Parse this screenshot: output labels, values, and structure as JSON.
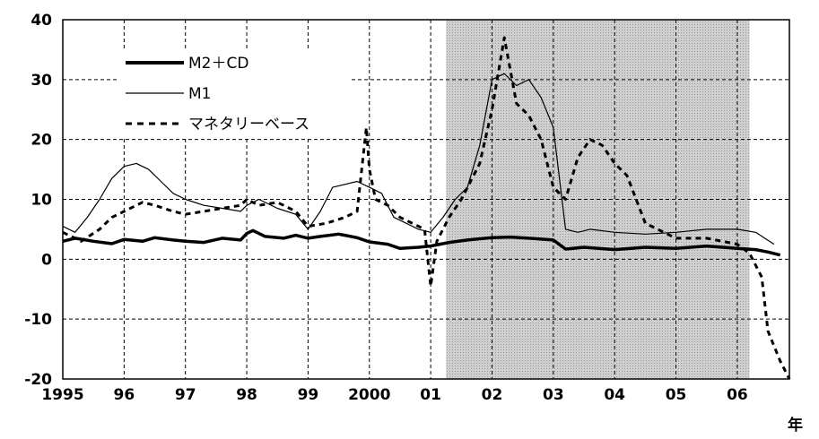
{
  "chart_data": {
    "type": "line",
    "title": "",
    "xlabel": "年",
    "ylabel": "",
    "ylim": [
      -20,
      40
    ],
    "yticks": [
      40,
      30,
      20,
      10,
      0,
      -10,
      -20
    ],
    "xlim": [
      1995.0,
      2006.85
    ],
    "xticks": [
      {
        "x": 1995,
        "label": "1995"
      },
      {
        "x": 1996,
        "label": "96"
      },
      {
        "x": 1997,
        "label": "97"
      },
      {
        "x": 1998,
        "label": "98"
      },
      {
        "x": 1999,
        "label": "99"
      },
      {
        "x": 2000,
        "label": "2000"
      },
      {
        "x": 2001,
        "label": "01"
      },
      {
        "x": 2002,
        "label": "02"
      },
      {
        "x": 2003,
        "label": "03"
      },
      {
        "x": 2004,
        "label": "04"
      },
      {
        "x": 2005,
        "label": "05"
      },
      {
        "x": 2006,
        "label": "06"
      }
    ],
    "grid": true,
    "legend_position": "top-left",
    "shaded_region": {
      "x_start": 2001.25,
      "x_end": 2006.2,
      "color": "#c8c8c8"
    },
    "series": [
      {
        "name": "M2＋CD",
        "style": "thick-solid",
        "color": "#000000",
        "x": [
          1995.0,
          1995.2,
          1995.5,
          1995.8,
          1996.0,
          1996.3,
          1996.5,
          1996.8,
          1997.0,
          1997.3,
          1997.6,
          1997.9,
          1998.0,
          1998.1,
          1998.3,
          1998.6,
          1998.8,
          1999.0,
          1999.2,
          1999.5,
          1999.8,
          2000.0,
          2000.3,
          2000.5,
          2000.8,
          2001.0,
          2001.3,
          2001.6,
          2002.0,
          2002.3,
          2002.6,
          2003.0,
          2003.2,
          2003.5,
          2004.0,
          2004.5,
          2005.0,
          2005.5,
          2006.0,
          2006.3,
          2006.5,
          2006.7
        ],
        "y": [
          3.0,
          3.5,
          3.0,
          2.6,
          3.3,
          3.0,
          3.6,
          3.2,
          3.0,
          2.8,
          3.5,
          3.2,
          4.3,
          4.8,
          3.8,
          3.5,
          4.0,
          3.5,
          3.8,
          4.2,
          3.6,
          2.9,
          2.5,
          1.8,
          2.0,
          2.2,
          2.8,
          3.2,
          3.6,
          3.7,
          3.5,
          3.2,
          1.7,
          2.0,
          1.6,
          2.0,
          1.8,
          2.2,
          1.8,
          1.6,
          1.2,
          0.7
        ]
      },
      {
        "name": "M1",
        "style": "thin-solid",
        "color": "#000000",
        "x": [
          1995.0,
          1995.2,
          1995.4,
          1995.6,
          1995.8,
          1996.0,
          1996.2,
          1996.4,
          1996.6,
          1996.8,
          1997.0,
          1997.3,
          1997.6,
          1997.9,
          1998.0,
          1998.2,
          1998.5,
          1998.8,
          1999.0,
          1999.2,
          1999.4,
          1999.6,
          1999.8,
          2000.0,
          2000.2,
          2000.4,
          2000.6,
          2000.8,
          2001.0,
          2001.2,
          2001.4,
          2001.6,
          2001.8,
          2002.0,
          2002.2,
          2002.4,
          2002.6,
          2002.8,
          2003.0,
          2003.2,
          2003.4,
          2003.6,
          2004.0,
          2004.5,
          2005.0,
          2005.5,
          2006.0,
          2006.3,
          2006.6
        ],
        "y": [
          5.5,
          4.5,
          7.0,
          10.0,
          13.5,
          15.5,
          16.0,
          15.0,
          13.0,
          11.0,
          10.0,
          9.0,
          8.5,
          8.0,
          9.0,
          10.0,
          8.5,
          7.5,
          5.0,
          8.0,
          12.0,
          12.5,
          13.0,
          12.0,
          11.0,
          7.0,
          6.0,
          5.0,
          4.5,
          7.0,
          10.0,
          12.0,
          19.0,
          30.0,
          31.0,
          29.0,
          30.0,
          27.0,
          22.0,
          5.0,
          4.5,
          5.0,
          4.5,
          4.2,
          4.5,
          5.0,
          5.0,
          4.5,
          2.5
        ]
      },
      {
        "name": "マネタリーベース",
        "style": "dashed",
        "color": "#000000",
        "x": [
          1995.0,
          1995.3,
          1995.6,
          1995.8,
          1996.0,
          1996.3,
          1996.5,
          1996.8,
          1997.0,
          1997.3,
          1997.6,
          1997.9,
          1998.0,
          1998.2,
          1998.5,
          1998.8,
          1999.0,
          1999.3,
          1999.6,
          1999.8,
          1999.95,
          2000.0,
          2000.1,
          2000.3,
          2000.5,
          2000.7,
          2000.9,
          2001.0,
          2001.1,
          2001.3,
          2001.5,
          2001.8,
          2002.0,
          2002.2,
          2002.4,
          2002.6,
          2002.8,
          2003.0,
          2003.2,
          2003.4,
          2003.6,
          2003.8,
          2004.0,
          2004.2,
          2004.5,
          2005.0,
          2005.5,
          2006.0,
          2006.2,
          2006.4,
          2006.5,
          2006.7,
          2006.85
        ],
        "y": [
          4.5,
          3.0,
          5.0,
          7.0,
          8.0,
          9.5,
          9.0,
          8.0,
          7.5,
          8.0,
          8.5,
          9.0,
          10.0,
          9.0,
          9.5,
          8.0,
          5.5,
          6.0,
          7.0,
          8.0,
          22.0,
          15.0,
          10.0,
          9.0,
          7.0,
          6.0,
          5.0,
          -4.5,
          3.0,
          7.0,
          10.0,
          16.0,
          25.0,
          37.0,
          26.0,
          24.0,
          20.0,
          12.0,
          10.0,
          17.0,
          20.0,
          19.0,
          16.0,
          14.0,
          6.0,
          3.5,
          3.5,
          2.5,
          1.0,
          -3.0,
          -12.0,
          -17.0,
          -20.0
        ]
      }
    ]
  }
}
